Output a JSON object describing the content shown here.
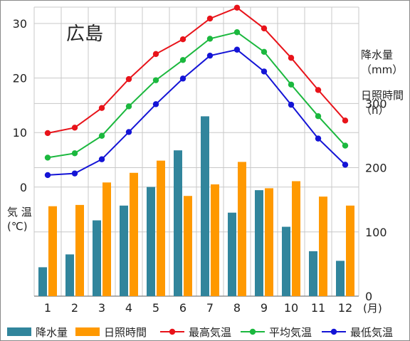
{
  "chart_data": {
    "type": "bar",
    "title": "広島",
    "categories": [
      "1",
      "2",
      "3",
      "4",
      "5",
      "6",
      "7",
      "8",
      "9",
      "10",
      "11",
      "12"
    ],
    "x_unit": "(月)",
    "left_axis": {
      "label_line1": "気 温",
      "label_line2": "(℃)",
      "ticks": [
        30,
        20,
        10,
        0
      ],
      "range": [
        -20,
        33
      ]
    },
    "right_axis": {
      "precip_label_line1": "降水量",
      "precip_label_line2": "（mm）",
      "sun_label_line1": "日照時間",
      "sun_label_line2": "（h）",
      "ticks": [
        300,
        200,
        100,
        0
      ],
      "range": [
        0,
        450
      ]
    },
    "grid": true,
    "legend_position": "bottom",
    "series": [
      {
        "name": "降水量",
        "kind": "bar",
        "axis": "right",
        "color": "#31859C",
        "values": [
          45,
          65,
          118,
          141,
          170,
          227,
          280,
          130,
          165,
          108,
          70,
          55
        ]
      },
      {
        "name": "日照時間",
        "kind": "bar",
        "axis": "right",
        "color": "#FF9900",
        "values": [
          140,
          142,
          177,
          192,
          211,
          156,
          174,
          209,
          168,
          179,
          155,
          141
        ]
      },
      {
        "name": "最高気温",
        "kind": "line",
        "axis": "left",
        "color": "#E8131A",
        "values": [
          9.9,
          10.9,
          14.5,
          19.8,
          24.4,
          27.1,
          30.9,
          32.9,
          29.1,
          23.7,
          17.8,
          12.2
        ]
      },
      {
        "name": "平均気温",
        "kind": "line",
        "axis": "left",
        "color": "#1BB83E",
        "values": [
          5.4,
          6.2,
          9.4,
          14.8,
          19.6,
          23.3,
          27.2,
          28.4,
          24.8,
          18.8,
          13.0,
          7.6
        ]
      },
      {
        "name": "最低気温",
        "kind": "line",
        "axis": "left",
        "color": "#1414D6",
        "values": [
          2.2,
          2.5,
          5.1,
          10.1,
          15.2,
          19.9,
          24.1,
          25.2,
          21.2,
          15.1,
          8.9,
          4.1
        ]
      }
    ]
  }
}
